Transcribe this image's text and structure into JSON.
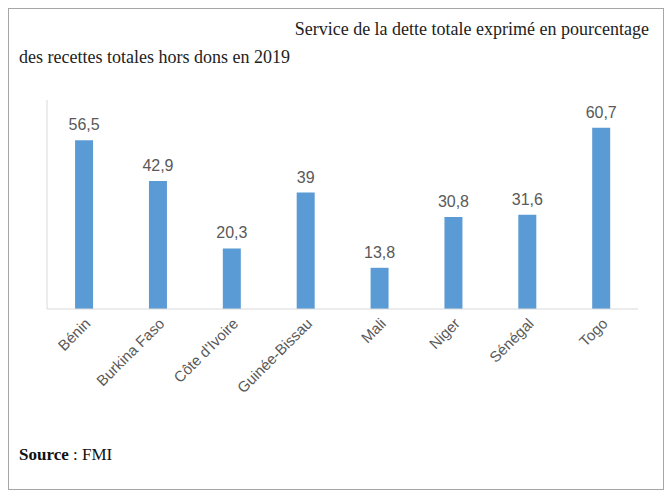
{
  "chart_data": {
    "type": "bar",
    "title": "Service de la dette totale exprimé en pourcentage\ndes recettes totales hors dons en 2019",
    "categories": [
      "Bénin",
      "Burkina Faso",
      "Côte d'Ivoire",
      "Guinée-Bissau",
      "Mali",
      "Niger",
      "Sénégal",
      "Togo"
    ],
    "values": [
      56.5,
      42.9,
      20.3,
      39,
      13.8,
      30.8,
      31.6,
      60.7
    ],
    "value_labels": [
      "56,5",
      "42,9",
      "20,3",
      "39",
      "13,8",
      "30,8",
      "31,6",
      "60,7"
    ],
    "color": "#5b9bd5",
    "ylim": [
      0,
      70
    ],
    "grid": false,
    "data_labels": true,
    "tick_labels": "x",
    "source": "Source : FMI"
  }
}
